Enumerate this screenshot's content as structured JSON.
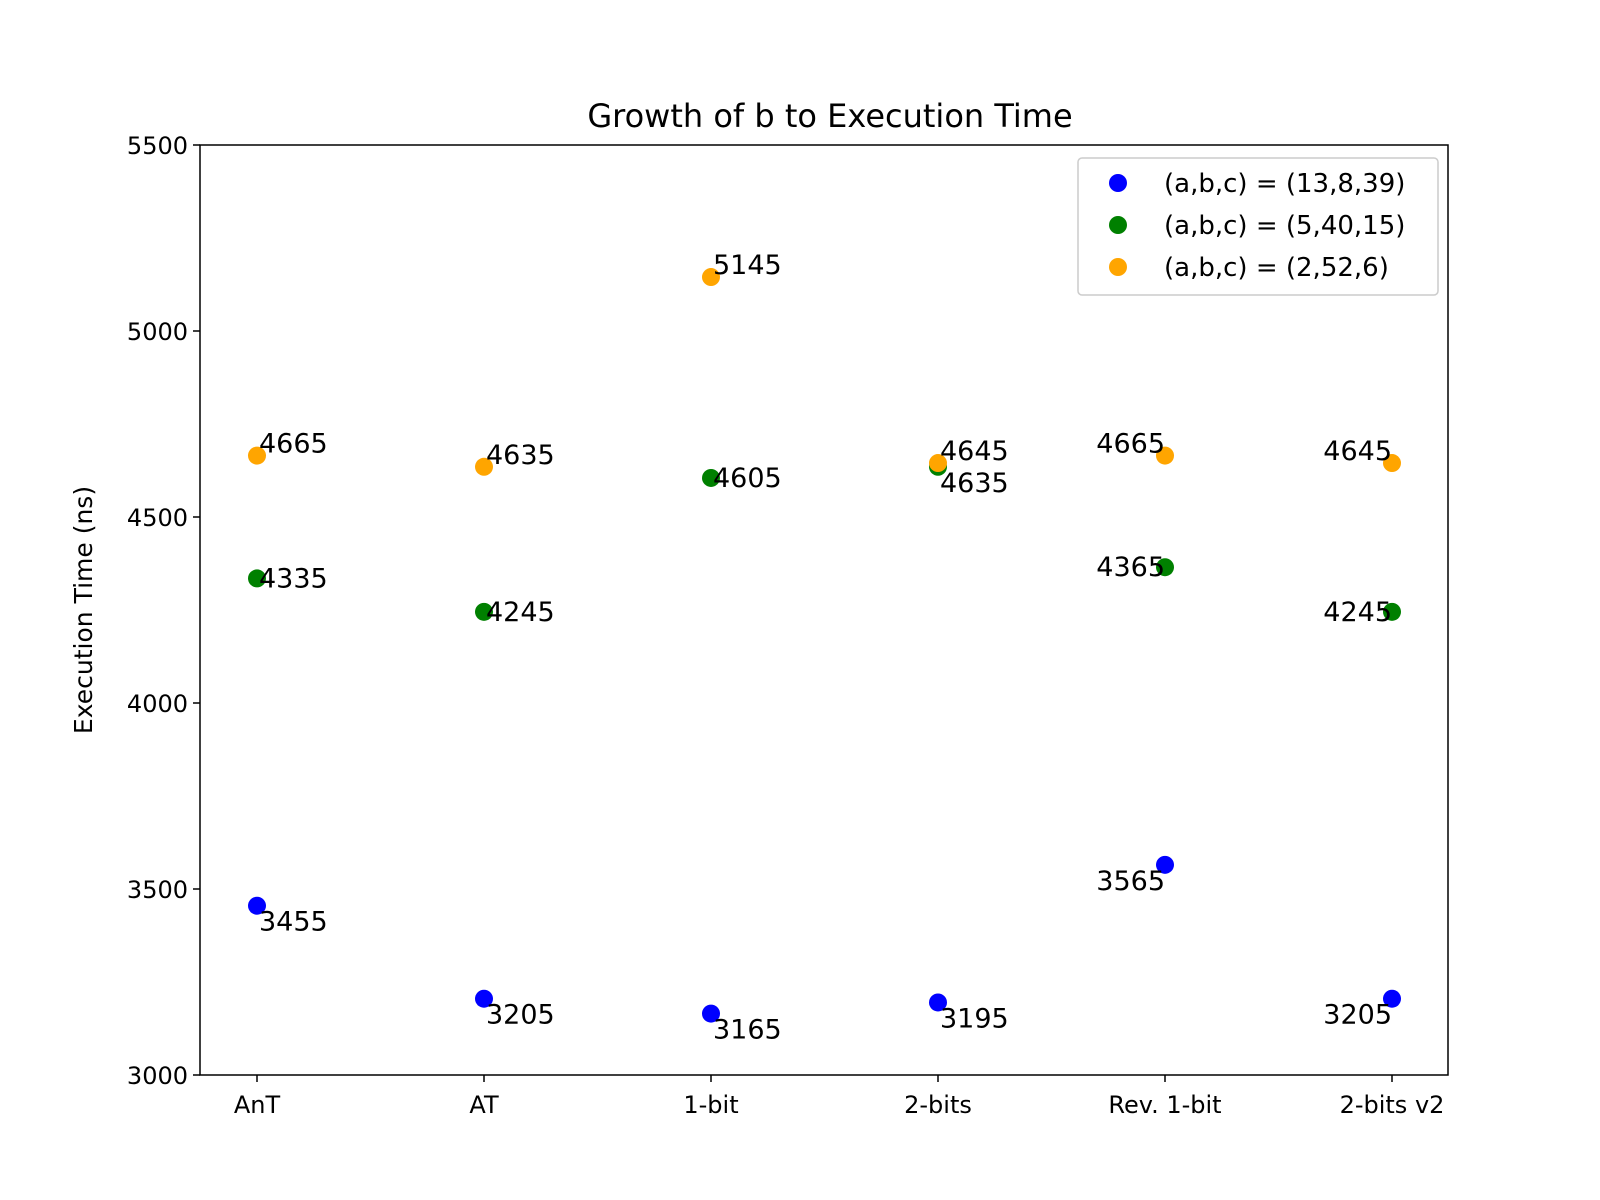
{
  "chart_data": {
    "type": "scatter",
    "title": "Growth of b to Execution Time",
    "xlabel": "",
    "ylabel": "Execution Time (ns)",
    "categories": [
      "AnT",
      "AT",
      "1-bit",
      "2-bits",
      "Rev. 1-bit",
      "2-bits v2"
    ],
    "ylim": [
      3000,
      5500
    ],
    "yticks": [
      3000,
      3500,
      4000,
      4500,
      5000,
      5500
    ],
    "grid": false,
    "legend_position": "top-right",
    "series": [
      {
        "name": "(a,b,c) = (13,8,39)",
        "color": "#0000ff",
        "values": [
          3455,
          3205,
          3165,
          3195,
          3565,
          3205
        ]
      },
      {
        "name": "(a,b,c) = (5,40,15)",
        "color": "#008000",
        "values": [
          4335,
          4245,
          4605,
          4635,
          4365,
          4245
        ]
      },
      {
        "name": "(a,b,c) = (2,52,6)",
        "color": "#ffa500",
        "values": [
          4665,
          4635,
          5145,
          4645,
          4665,
          4645
        ]
      }
    ]
  }
}
